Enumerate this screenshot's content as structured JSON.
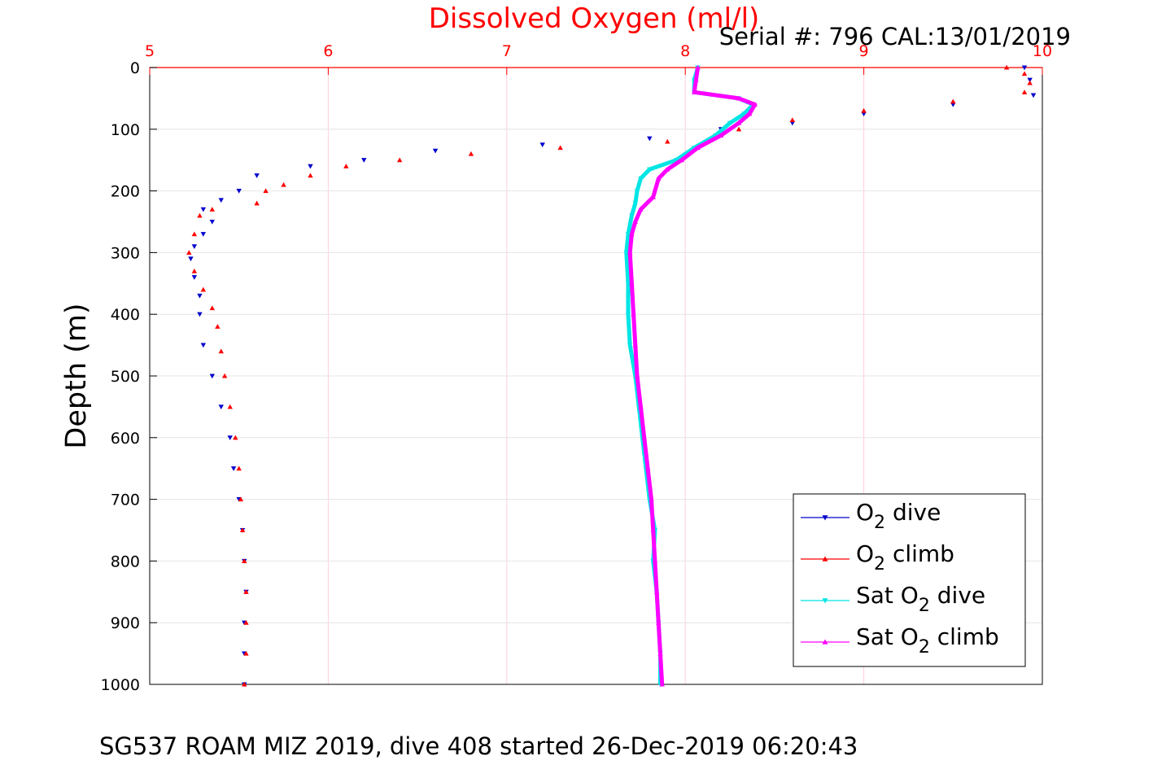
{
  "chart_data": {
    "type": "scatter",
    "title": "Dissolved Oxygen (ml/l)",
    "annotation": "Serial #: 796  CAL:13/01/2019",
    "caption": "SG537 ROAM MIZ 2019, dive 408 started 26-Dec-2019 06:20:43",
    "xlabel": "",
    "ylabel": "Depth (m)",
    "xlim": [
      5,
      10
    ],
    "ylim": [
      0,
      1000
    ],
    "y_reversed": true,
    "x_axis_position": "top",
    "grid": true,
    "legend_position": "bottom-right",
    "xticks": [
      "5",
      "6",
      "7",
      "8",
      "9",
      "10"
    ],
    "yticks": [
      "0",
      "100",
      "200",
      "300",
      "400",
      "500",
      "600",
      "700",
      "800",
      "900",
      "1000"
    ],
    "colors": {
      "title": "#ff0000",
      "x_axis": "#ff0000",
      "grid": "#ffd0d8",
      "o2_dive": "#0000cc",
      "o2_climb": "#ff0000",
      "sat_dive": "#00e5e5",
      "sat_climb": "#ff00ff"
    },
    "series": [
      {
        "key": "o2_dive",
        "legend": {
          "pre": "O",
          "sub": "2",
          "post": " dive"
        },
        "marker": "triangle-down",
        "points": [
          [
            9.9,
            0
          ],
          [
            9.93,
            20
          ],
          [
            9.95,
            45
          ],
          [
            9.5,
            60
          ],
          [
            9.0,
            75
          ],
          [
            8.6,
            90
          ],
          [
            8.2,
            100
          ],
          [
            7.8,
            115
          ],
          [
            7.2,
            125
          ],
          [
            6.6,
            135
          ],
          [
            6.2,
            150
          ],
          [
            5.9,
            160
          ],
          [
            5.6,
            175
          ],
          [
            5.5,
            200
          ],
          [
            5.4,
            215
          ],
          [
            5.3,
            230
          ],
          [
            5.35,
            250
          ],
          [
            5.3,
            270
          ],
          [
            5.25,
            290
          ],
          [
            5.23,
            310
          ],
          [
            5.25,
            340
          ],
          [
            5.28,
            370
          ],
          [
            5.28,
            400
          ],
          [
            5.3,
            450
          ],
          [
            5.35,
            500
          ],
          [
            5.4,
            550
          ],
          [
            5.45,
            600
          ],
          [
            5.47,
            650
          ],
          [
            5.5,
            700
          ],
          [
            5.52,
            750
          ],
          [
            5.53,
            800
          ],
          [
            5.54,
            850
          ],
          [
            5.53,
            900
          ],
          [
            5.53,
            950
          ],
          [
            5.53,
            1000
          ]
        ]
      },
      {
        "key": "o2_climb",
        "legend": {
          "pre": "O",
          "sub": "2",
          "post": " climb"
        },
        "marker": "triangle-up",
        "points": [
          [
            9.8,
            0
          ],
          [
            9.9,
            10
          ],
          [
            9.93,
            25
          ],
          [
            9.9,
            40
          ],
          [
            9.5,
            55
          ],
          [
            9.0,
            70
          ],
          [
            8.6,
            85
          ],
          [
            8.3,
            100
          ],
          [
            7.9,
            120
          ],
          [
            7.3,
            130
          ],
          [
            6.8,
            140
          ],
          [
            6.4,
            150
          ],
          [
            6.1,
            160
          ],
          [
            5.9,
            175
          ],
          [
            5.75,
            190
          ],
          [
            5.65,
            200
          ],
          [
            5.6,
            220
          ],
          [
            5.35,
            230
          ],
          [
            5.28,
            240
          ],
          [
            5.25,
            270
          ],
          [
            5.22,
            300
          ],
          [
            5.25,
            330
          ],
          [
            5.3,
            360
          ],
          [
            5.35,
            390
          ],
          [
            5.38,
            420
          ],
          [
            5.4,
            460
          ],
          [
            5.42,
            500
          ],
          [
            5.45,
            550
          ],
          [
            5.48,
            600
          ],
          [
            5.5,
            650
          ],
          [
            5.51,
            700
          ],
          [
            5.52,
            750
          ],
          [
            5.53,
            800
          ],
          [
            5.54,
            850
          ],
          [
            5.54,
            900
          ],
          [
            5.54,
            950
          ],
          [
            5.53,
            1000
          ]
        ]
      },
      {
        "key": "sat_dive",
        "legend": {
          "pre": "Sat O",
          "sub": "2",
          "post": " dive"
        },
        "marker": "triangle-down",
        "points": [
          [
            8.07,
            0
          ],
          [
            8.05,
            20
          ],
          [
            8.05,
            40
          ],
          [
            8.3,
            50
          ],
          [
            8.38,
            60
          ],
          [
            8.33,
            75
          ],
          [
            8.25,
            90
          ],
          [
            8.17,
            110
          ],
          [
            8.05,
            130
          ],
          [
            7.95,
            150
          ],
          [
            7.8,
            165
          ],
          [
            7.75,
            180
          ],
          [
            7.73,
            200
          ],
          [
            7.72,
            220
          ],
          [
            7.7,
            240
          ],
          [
            7.68,
            270
          ],
          [
            7.67,
            300
          ],
          [
            7.68,
            350
          ],
          [
            7.68,
            400
          ],
          [
            7.69,
            450
          ],
          [
            7.72,
            500
          ],
          [
            7.74,
            550
          ],
          [
            7.76,
            600
          ],
          [
            7.78,
            650
          ],
          [
            7.8,
            700
          ],
          [
            7.83,
            750
          ],
          [
            7.82,
            800
          ],
          [
            7.84,
            850
          ],
          [
            7.85,
            900
          ],
          [
            7.86,
            950
          ],
          [
            7.86,
            1000
          ]
        ]
      },
      {
        "key": "sat_climb",
        "legend": {
          "pre": "Sat O",
          "sub": "2",
          "post": " climb"
        },
        "marker": "triangle-up",
        "points": [
          [
            8.07,
            0
          ],
          [
            8.06,
            20
          ],
          [
            8.05,
            40
          ],
          [
            8.3,
            50
          ],
          [
            8.39,
            60
          ],
          [
            8.36,
            75
          ],
          [
            8.3,
            90
          ],
          [
            8.2,
            110
          ],
          [
            8.07,
            130
          ],
          [
            7.98,
            150
          ],
          [
            7.9,
            165
          ],
          [
            7.85,
            180
          ],
          [
            7.82,
            210
          ],
          [
            7.75,
            230
          ],
          [
            7.72,
            250
          ],
          [
            7.7,
            270
          ],
          [
            7.69,
            300
          ],
          [
            7.7,
            350
          ],
          [
            7.71,
            400
          ],
          [
            7.72,
            450
          ],
          [
            7.73,
            500
          ],
          [
            7.75,
            550
          ],
          [
            7.77,
            600
          ],
          [
            7.79,
            650
          ],
          [
            7.81,
            700
          ],
          [
            7.82,
            750
          ],
          [
            7.83,
            800
          ],
          [
            7.84,
            850
          ],
          [
            7.85,
            900
          ],
          [
            7.86,
            950
          ],
          [
            7.87,
            1000
          ]
        ]
      }
    ]
  }
}
